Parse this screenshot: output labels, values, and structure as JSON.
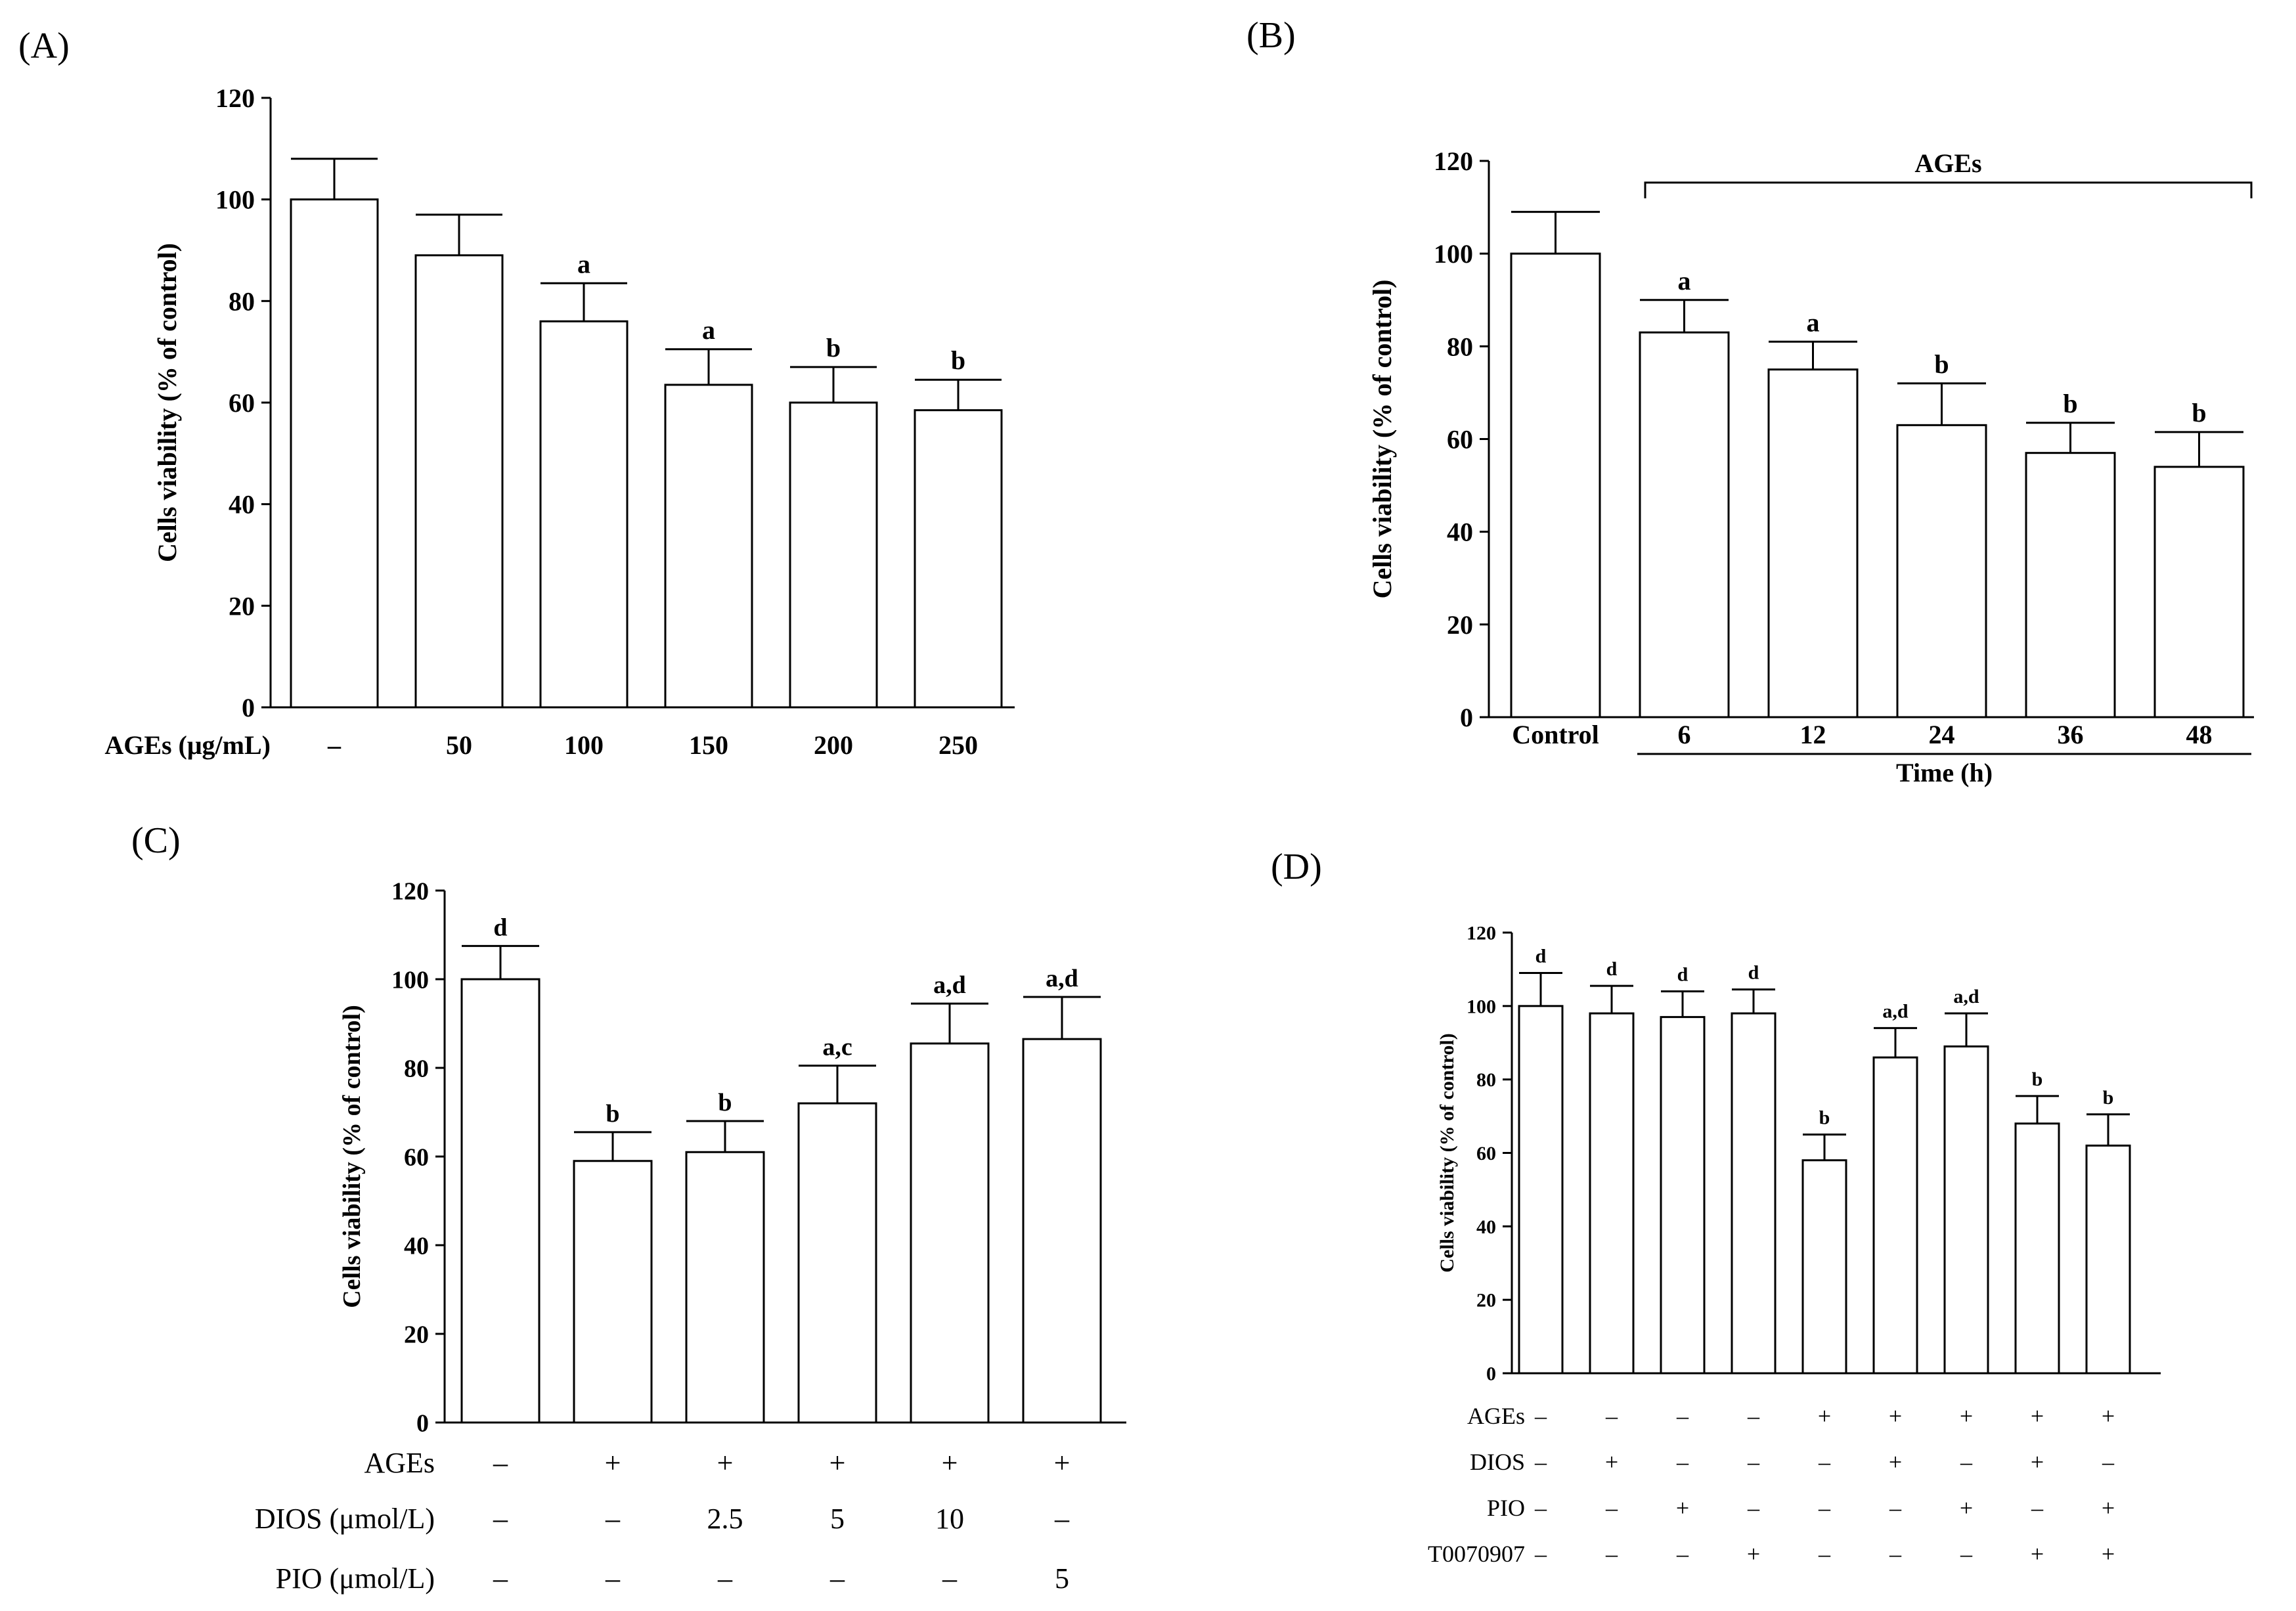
{
  "chart_data": [
    {
      "panel": "(A)",
      "type": "bar",
      "ylabel": "Cells viability (% of control)",
      "ylim": [
        0,
        120
      ],
      "yticks": [
        0,
        20,
        40,
        60,
        80,
        100,
        120
      ],
      "xlabel": "AGEs (μg/mL)",
      "categories": [
        "–",
        "50",
        "100",
        "150",
        "200",
        "250"
      ],
      "values": [
        100,
        89,
        76,
        63.5,
        60,
        58.5
      ],
      "errors": [
        8,
        8,
        7.5,
        7,
        7,
        6
      ],
      "annotations": [
        "",
        "",
        "a",
        "a",
        "b",
        "b"
      ]
    },
    {
      "panel": "(B)",
      "type": "bar",
      "ylabel": "Cells viability (% of control)",
      "ylim": [
        0,
        120
      ],
      "yticks": [
        0,
        20,
        40,
        60,
        80,
        100,
        120
      ],
      "bracket_label": "AGEs",
      "xlabel": "Time (h)",
      "categories": [
        "Control",
        "6",
        "12",
        "24",
        "36",
        "48"
      ],
      "values": [
        100,
        83,
        75,
        63,
        57,
        54
      ],
      "errors": [
        9,
        7,
        6,
        9,
        6.5,
        7.5
      ],
      "annotations": [
        "",
        "a",
        "a",
        "b",
        "b",
        "b"
      ]
    },
    {
      "panel": "(C)",
      "type": "bar",
      "ylabel": "Cells viability (% of control)",
      "ylim": [
        0,
        120
      ],
      "yticks": [
        0,
        20,
        40,
        60,
        80,
        100,
        120
      ],
      "values": [
        100,
        59,
        61,
        72,
        85.5,
        86.5
      ],
      "errors": [
        7.5,
        6.5,
        7,
        8.5,
        9,
        9.5
      ],
      "annotations": [
        "d",
        "b",
        "b",
        "a,c",
        "a,d",
        "a,d"
      ],
      "treatment_rows": [
        {
          "label": "AGEs",
          "cells": [
            "–",
            "+",
            "+",
            "+",
            "+",
            "+"
          ]
        },
        {
          "label": "DIOS (μmol/L)",
          "cells": [
            "–",
            "–",
            "2.5",
            "5",
            "10",
            "–"
          ]
        },
        {
          "label": "PIO (μmol/L)",
          "cells": [
            "–",
            "–",
            "–",
            "–",
            "–",
            "5"
          ]
        }
      ]
    },
    {
      "panel": "(D)",
      "type": "bar",
      "ylabel": "Cells viability (% of control)",
      "ylim": [
        0,
        120
      ],
      "yticks": [
        0,
        20,
        40,
        60,
        80,
        100,
        120
      ],
      "values": [
        100,
        98,
        97,
        98,
        58,
        86,
        89,
        68,
        62
      ],
      "errors": [
        9,
        7.5,
        7,
        6.5,
        7,
        8,
        9,
        7.5,
        8.5
      ],
      "annotations": [
        "d",
        "d",
        "d",
        "d",
        "b",
        "a,d",
        "a,d",
        "b",
        "b"
      ],
      "treatment_rows": [
        {
          "label": "AGEs",
          "cells": [
            "–",
            "–",
            "–",
            "–",
            "+",
            "+",
            "+",
            "+",
            "+"
          ]
        },
        {
          "label": "DIOS",
          "cells": [
            "–",
            "+",
            "–",
            "–",
            "–",
            "+",
            "–",
            "+",
            "–"
          ]
        },
        {
          "label": "PIO",
          "cells": [
            "–",
            "–",
            "+",
            "–",
            "–",
            "–",
            "+",
            "–",
            "+"
          ]
        },
        {
          "label": "T0070907",
          "cells": [
            "–",
            "–",
            "–",
            "+",
            "–",
            "–",
            "–",
            "+",
            "+"
          ]
        }
      ]
    }
  ]
}
